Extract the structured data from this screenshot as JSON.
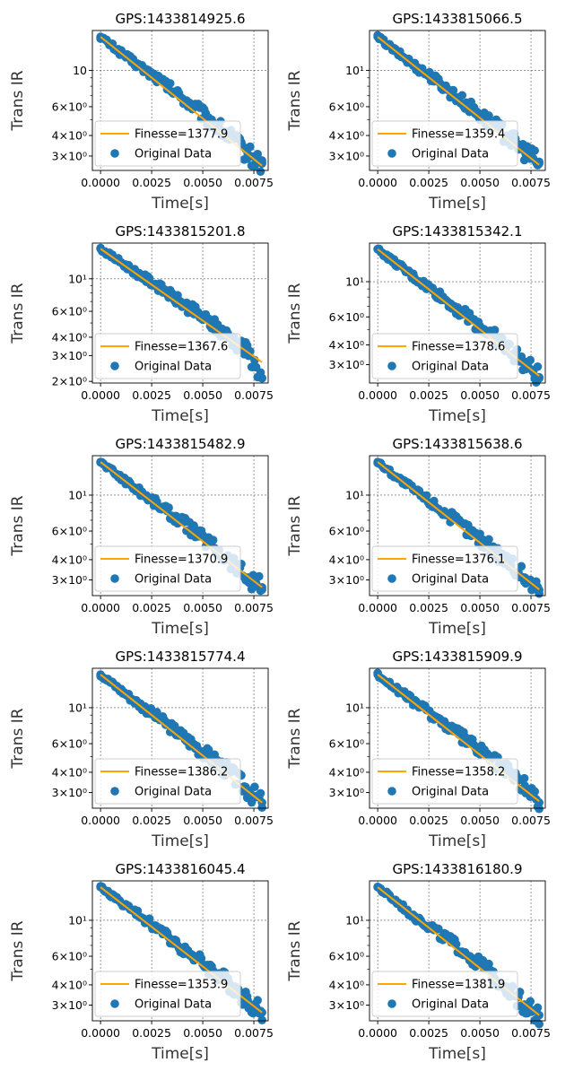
{
  "figure": {
    "xlabel": "Time[s]",
    "ylabel": "Trans IR",
    "legend_fit_prefix": "Finesse=",
    "legend_data_label": "Original Data",
    "x_ticks": [
      "0.0000",
      "0.0025",
      "0.0050",
      "0.0075"
    ],
    "colors": {
      "fit": "#ffa500",
      "data": "#1f77b4",
      "grid": "#555555"
    }
  },
  "chart_data": [
    {
      "type": "scatter",
      "title": "GPS:1433814925.6",
      "xlabel": "Time[s]",
      "ylabel": "Trans IR",
      "yscale": "log",
      "xlim": [
        -0.0004,
        0.0082
      ],
      "ylim": [
        2.45,
        17.5
      ],
      "y_ticks": [
        {
          "value": 10,
          "label": "10"
        },
        {
          "value": 6,
          "label": "6×10⁰"
        },
        {
          "value": 4,
          "label": "4×10⁰"
        },
        {
          "value": 3,
          "label": "3×10⁰"
        }
      ],
      "grid": true,
      "legend_position": "lower-left",
      "series": [
        {
          "name": "Finesse=1377.9",
          "kind": "line",
          "finesse": "1377.9",
          "x": [
            0,
            0.0079
          ],
          "y": [
            16.0,
            2.62
          ]
        },
        {
          "name": "Original Data",
          "kind": "scatter",
          "x": [
            0,
            0.0009,
            0.0018,
            0.0027,
            0.0036,
            0.0045,
            0.0054,
            0.0063,
            0.0072,
            0.0079
          ],
          "y": [
            16.0,
            13.1,
            10.8,
            9.1,
            7.4,
            6.1,
            4.9,
            4.0,
            3.1,
            2.7
          ]
        }
      ]
    },
    {
      "type": "scatter",
      "title": "GPS:1433815066.5",
      "xlabel": "Time[s]",
      "ylabel": "Trans IR",
      "yscale": "log",
      "xlim": [
        -0.0004,
        0.0082
      ],
      "ylim": [
        2.45,
        17.5
      ],
      "y_ticks": [
        {
          "value": 10,
          "label": "10¹"
        },
        {
          "value": 6,
          "label": "6×10⁰"
        },
        {
          "value": 4,
          "label": "4×10⁰"
        },
        {
          "value": 3,
          "label": "3×10⁰"
        }
      ],
      "grid": true,
      "legend_position": "lower-left",
      "series": [
        {
          "name": "Finesse=1359.4",
          "kind": "line",
          "finesse": "1359.4",
          "x": [
            0,
            0.0079
          ],
          "y": [
            16.0,
            2.65
          ]
        },
        {
          "name": "Original Data",
          "kind": "scatter",
          "x": [
            0,
            0.0009,
            0.0018,
            0.0027,
            0.0036,
            0.0045,
            0.0054,
            0.0063,
            0.0072,
            0.0079
          ],
          "y": [
            16.0,
            13.0,
            10.7,
            9.0,
            7.3,
            6.0,
            4.9,
            4.0,
            3.2,
            2.7
          ]
        }
      ]
    },
    {
      "type": "scatter",
      "title": "GPS:1433815201.8",
      "xlabel": "Time[s]",
      "ylabel": "Trans IR",
      "yscale": "log",
      "xlim": [
        -0.0004,
        0.0082
      ],
      "ylim": [
        1.95,
        17.5
      ],
      "y_ticks": [
        {
          "value": 10,
          "label": "10¹"
        },
        {
          "value": 6,
          "label": "6×10⁰"
        },
        {
          "value": 4,
          "label": "4×10⁰"
        },
        {
          "value": 3,
          "label": "3×10⁰"
        },
        {
          "value": 2,
          "label": "2×10⁰"
        }
      ],
      "grid": true,
      "legend_position": "lower-left",
      "series": [
        {
          "name": "Finesse=1367.6",
          "kind": "line",
          "finesse": "1367.6",
          "x": [
            0,
            0.0079
          ],
          "y": [
            16.0,
            2.7
          ]
        },
        {
          "name": "Original Data",
          "kind": "scatter",
          "x": [
            0,
            0.0009,
            0.0018,
            0.0027,
            0.0036,
            0.0045,
            0.0054,
            0.0063,
            0.0072,
            0.0079
          ],
          "y": [
            16.0,
            13.2,
            10.9,
            9.1,
            7.4,
            6.1,
            5.0,
            4.0,
            3.2,
            2.1
          ]
        }
      ]
    },
    {
      "type": "scatter",
      "title": "GPS:1433815342.1",
      "xlabel": "Time[s]",
      "ylabel": "Trans IR",
      "yscale": "log",
      "xlim": [
        -0.0004,
        0.0082
      ],
      "ylim": [
        2.3,
        17.5
      ],
      "y_ticks": [
        {
          "value": 10,
          "label": "10¹"
        },
        {
          "value": 6,
          "label": "6×10⁰"
        },
        {
          "value": 4,
          "label": "4×10⁰"
        },
        {
          "value": 3,
          "label": "3×10⁰"
        }
      ],
      "grid": true,
      "legend_position": "lower-left",
      "series": [
        {
          "name": "Finesse=1378.6",
          "kind": "line",
          "finesse": "1378.6",
          "x": [
            0,
            0.0079
          ],
          "y": [
            16.0,
            2.55
          ]
        },
        {
          "name": "Original Data",
          "kind": "scatter",
          "x": [
            0,
            0.0009,
            0.0018,
            0.0027,
            0.0036,
            0.0045,
            0.0054,
            0.0063,
            0.0072,
            0.0079
          ],
          "y": [
            16.0,
            13.0,
            10.6,
            8.8,
            7.2,
            5.9,
            4.8,
            3.9,
            3.0,
            2.5
          ]
        }
      ]
    },
    {
      "type": "scatter",
      "title": "GPS:1433815482.9",
      "xlabel": "Time[s]",
      "ylabel": "Trans IR",
      "yscale": "log",
      "xlim": [
        -0.0004,
        0.0082
      ],
      "ylim": [
        2.4,
        17.5
      ],
      "y_ticks": [
        {
          "value": 10,
          "label": "10¹"
        },
        {
          "value": 6,
          "label": "6×10⁰"
        },
        {
          "value": 4,
          "label": "4×10⁰"
        },
        {
          "value": 3,
          "label": "3×10⁰"
        }
      ],
      "grid": true,
      "legend_position": "lower-left",
      "series": [
        {
          "name": "Finesse=1370.9",
          "kind": "line",
          "finesse": "1370.9",
          "x": [
            0,
            0.0079
          ],
          "y": [
            16.0,
            2.7
          ]
        },
        {
          "name": "Original Data",
          "kind": "scatter",
          "x": [
            0,
            0.0009,
            0.0018,
            0.0027,
            0.0036,
            0.0045,
            0.0054,
            0.0063,
            0.0072,
            0.0079
          ],
          "y": [
            16.0,
            13.1,
            10.8,
            9.0,
            7.4,
            6.1,
            5.0,
            4.0,
            3.1,
            2.7
          ]
        }
      ]
    },
    {
      "type": "scatter",
      "title": "GPS:1433815638.6",
      "xlabel": "Time[s]",
      "ylabel": "Trans IR",
      "yscale": "log",
      "xlim": [
        -0.0004,
        0.0082
      ],
      "ylim": [
        2.4,
        17.5
      ],
      "y_ticks": [
        {
          "value": 10,
          "label": "10¹"
        },
        {
          "value": 6,
          "label": "6×10⁰"
        },
        {
          "value": 4,
          "label": "4×10⁰"
        },
        {
          "value": 3,
          "label": "3×10⁰"
        }
      ],
      "grid": true,
      "legend_position": "lower-left",
      "series": [
        {
          "name": "Finesse=1376.1",
          "kind": "line",
          "finesse": "1376.1",
          "x": [
            0,
            0.0079
          ],
          "y": [
            16.0,
            2.62
          ]
        },
        {
          "name": "Original Data",
          "kind": "scatter",
          "x": [
            0,
            0.0009,
            0.0018,
            0.0027,
            0.0036,
            0.0045,
            0.0054,
            0.0063,
            0.0072,
            0.0079
          ],
          "y": [
            16.0,
            13.0,
            10.7,
            8.9,
            7.3,
            6.0,
            4.9,
            4.0,
            3.1,
            2.6
          ]
        }
      ]
    },
    {
      "type": "scatter",
      "title": "GPS:1433815774.4",
      "xlabel": "Time[s]",
      "ylabel": "Trans IR",
      "yscale": "log",
      "xlim": [
        -0.0004,
        0.0082
      ],
      "ylim": [
        2.4,
        17.5
      ],
      "y_ticks": [
        {
          "value": 10,
          "label": "10¹"
        },
        {
          "value": 6,
          "label": "6×10⁰"
        },
        {
          "value": 4,
          "label": "4×10⁰"
        },
        {
          "value": 3,
          "label": "3×10⁰"
        }
      ],
      "grid": true,
      "legend_position": "lower-left",
      "series": [
        {
          "name": "Finesse=1386.2",
          "kind": "line",
          "finesse": "1386.2",
          "x": [
            0,
            0.0079
          ],
          "y": [
            16.0,
            2.6
          ]
        },
        {
          "name": "Original Data",
          "kind": "scatter",
          "x": [
            0,
            0.0009,
            0.0018,
            0.0027,
            0.0036,
            0.0045,
            0.0054,
            0.0063,
            0.0072,
            0.0079
          ],
          "y": [
            16.0,
            13.1,
            10.7,
            8.9,
            7.3,
            6.0,
            4.9,
            4.0,
            3.1,
            2.6
          ]
        }
      ]
    },
    {
      "type": "scatter",
      "title": "GPS:1433815909.9",
      "xlabel": "Time[s]",
      "ylabel": "Trans IR",
      "yscale": "log",
      "xlim": [
        -0.0004,
        0.0082
      ],
      "ylim": [
        2.4,
        17.5
      ],
      "y_ticks": [
        {
          "value": 10,
          "label": "10¹"
        },
        {
          "value": 6,
          "label": "6×10⁰"
        },
        {
          "value": 4,
          "label": "4×10⁰"
        },
        {
          "value": 3,
          "label": "3×10⁰"
        }
      ],
      "grid": true,
      "legend_position": "lower-left",
      "series": [
        {
          "name": "Finesse=1358.2",
          "kind": "line",
          "finesse": "1358.2",
          "x": [
            0,
            0.0079
          ],
          "y": [
            16.0,
            2.65
          ]
        },
        {
          "name": "Original Data",
          "kind": "scatter",
          "x": [
            0,
            0.0009,
            0.0018,
            0.0027,
            0.0036,
            0.0045,
            0.0054,
            0.0063,
            0.0072,
            0.0079
          ],
          "y": [
            16.0,
            13.1,
            10.8,
            9.0,
            7.4,
            6.1,
            5.0,
            4.1,
            3.3,
            2.6
          ]
        }
      ]
    },
    {
      "type": "scatter",
      "title": "GPS:1433816045.4",
      "xlabel": "Time[s]",
      "ylabel": "Trans IR",
      "yscale": "log",
      "xlim": [
        -0.0004,
        0.0082
      ],
      "ylim": [
        2.4,
        17.5
      ],
      "y_ticks": [
        {
          "value": 10,
          "label": "10¹"
        },
        {
          "value": 6,
          "label": "6×10⁰"
        },
        {
          "value": 4,
          "label": "4×10⁰"
        },
        {
          "value": 3,
          "label": "3×10⁰"
        }
      ],
      "grid": true,
      "legend_position": "lower-left",
      "series": [
        {
          "name": "Finesse=1353.9",
          "kind": "line",
          "finesse": "1353.9",
          "x": [
            0,
            0.0079
          ],
          "y": [
            16.0,
            2.7
          ]
        },
        {
          "name": "Original Data",
          "kind": "scatter",
          "x": [
            0,
            0.0009,
            0.0018,
            0.0027,
            0.0036,
            0.0045,
            0.0054,
            0.0063,
            0.0072,
            0.0079
          ],
          "y": [
            16.0,
            13.2,
            10.9,
            9.1,
            7.4,
            6.1,
            5.0,
            4.1,
            3.2,
            2.7
          ]
        }
      ]
    },
    {
      "type": "scatter",
      "title": "GPS:1433816180.9",
      "xlabel": "Time[s]",
      "ylabel": "Trans IR",
      "yscale": "log",
      "xlim": [
        -0.0004,
        0.0082
      ],
      "ylim": [
        2.4,
        17.5
      ],
      "y_ticks": [
        {
          "value": 10,
          "label": "10¹"
        },
        {
          "value": 6,
          "label": "6×10⁰"
        },
        {
          "value": 4,
          "label": "4×10⁰"
        },
        {
          "value": 3,
          "label": "3×10⁰"
        }
      ],
      "grid": true,
      "legend_position": "lower-left",
      "series": [
        {
          "name": "Finesse=1381.9",
          "kind": "line",
          "finesse": "1381.9",
          "x": [
            0,
            0.0079
          ],
          "y": [
            16.0,
            2.6
          ]
        },
        {
          "name": "Original Data",
          "kind": "scatter",
          "x": [
            0,
            0.0009,
            0.0018,
            0.0027,
            0.0036,
            0.0045,
            0.0054,
            0.0063,
            0.0072,
            0.0079
          ],
          "y": [
            16.0,
            13.0,
            10.6,
            8.9,
            7.3,
            6.0,
            4.9,
            3.9,
            3.0,
            2.6
          ]
        }
      ]
    }
  ]
}
